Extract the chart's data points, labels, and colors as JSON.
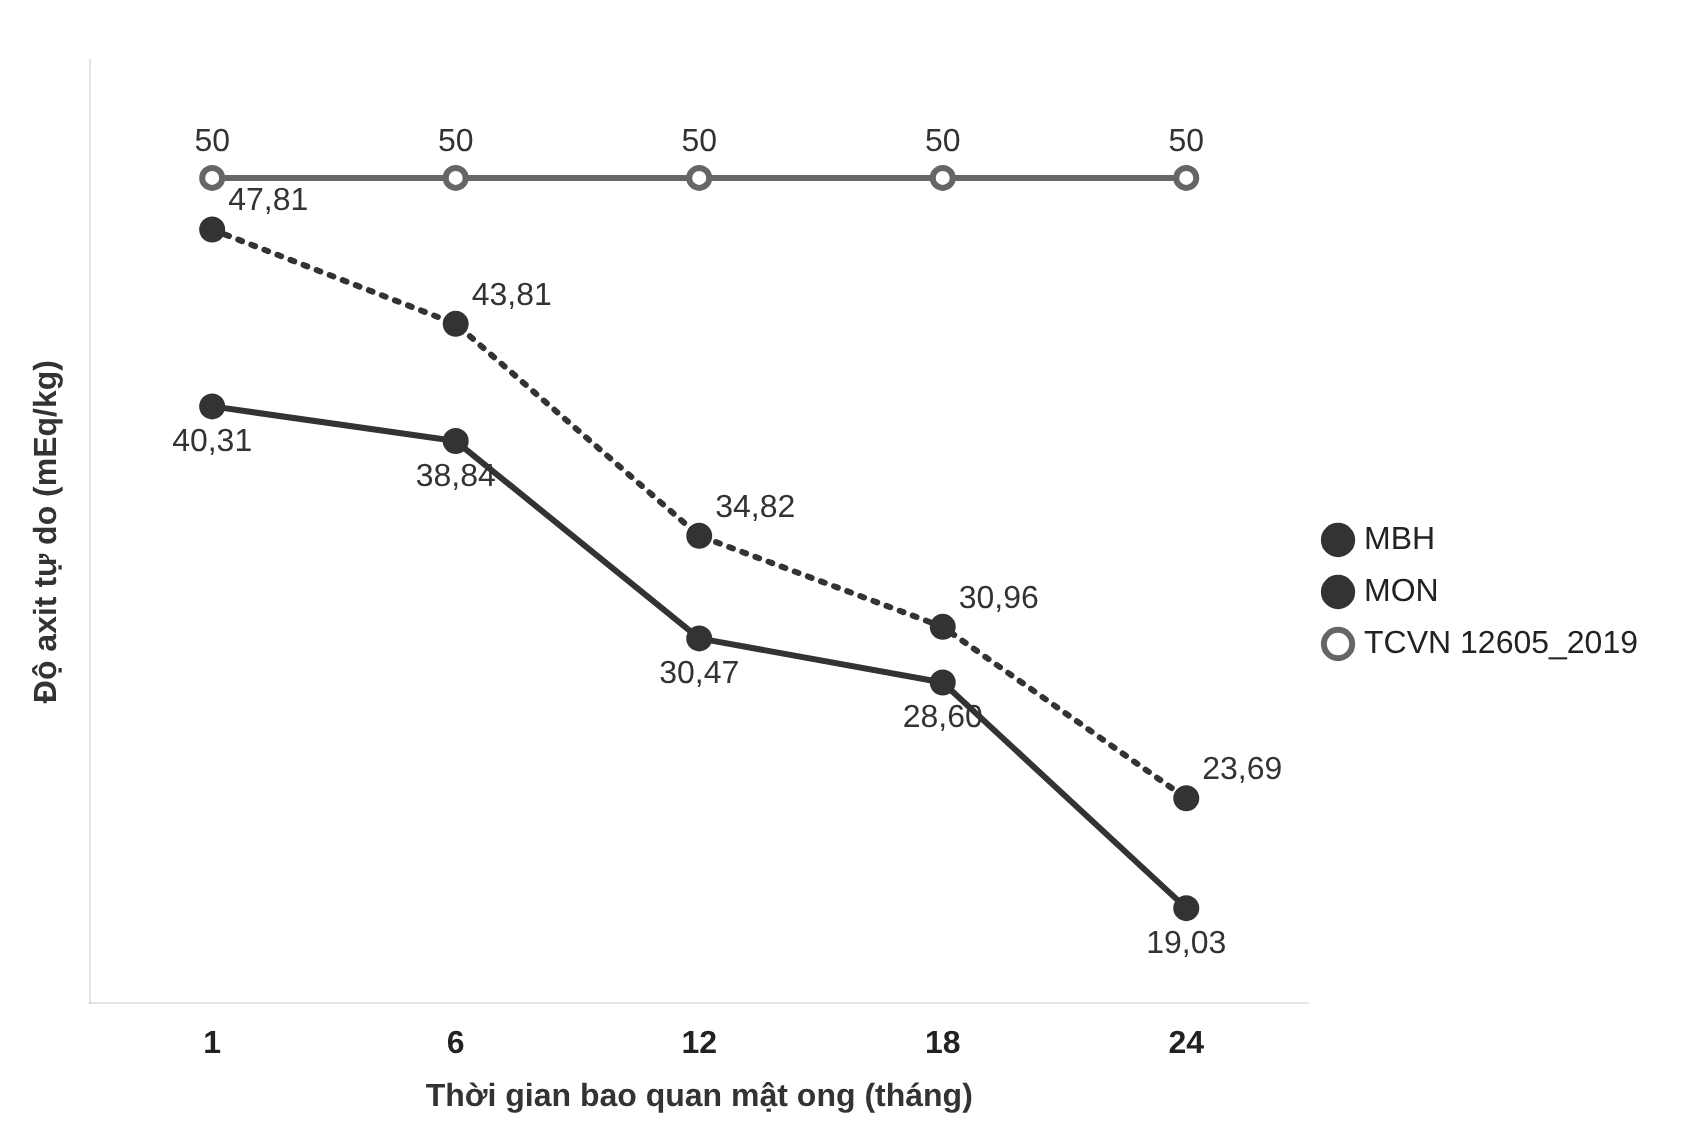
{
  "chart_data": {
    "type": "line",
    "xlabel": "Thời gian bao quan mật ong (tháng)",
    "ylabel": "Độ axit tự do (mEq/kg)",
    "categories": [
      "1",
      "6",
      "12",
      "18",
      "24"
    ],
    "series": [
      {
        "name": "MBH",
        "color": "#333333",
        "line_style": "dotted",
        "marker": "circle",
        "values": [
          47.81,
          43.81,
          34.82,
          30.96,
          23.69
        ],
        "value_labels": [
          "47,81",
          "43,81",
          "34,82",
          "30,96",
          "23,69"
        ]
      },
      {
        "name": "MON",
        "color": "#333333",
        "line_style": "solid",
        "marker": "circle",
        "values": [
          40.31,
          38.84,
          30.47,
          28.6,
          19.03
        ],
        "value_labels": [
          "40,31",
          "38,84",
          "30,47",
          "28,60",
          "19,03"
        ]
      },
      {
        "name": "TCVN 12605_2019",
        "color": "#666666",
        "line_style": "solid",
        "marker": "circle",
        "values": [
          50,
          50,
          50,
          50,
          50
        ],
        "value_labels": [
          "50",
          "50",
          "50",
          "50",
          "50"
        ]
      }
    ],
    "grid": false,
    "legend": "right",
    "tick_labels": "x"
  }
}
